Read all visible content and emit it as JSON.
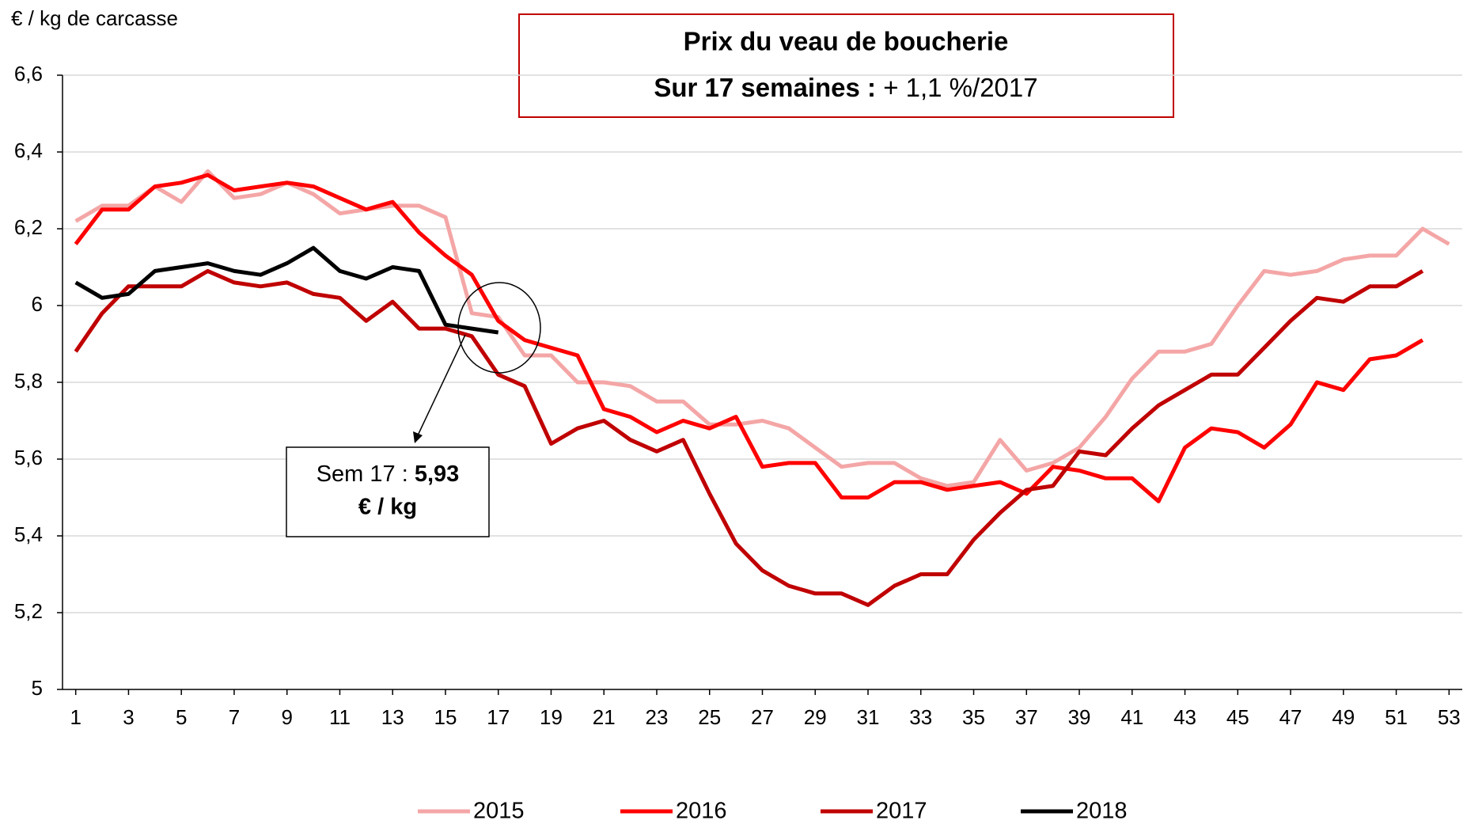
{
  "chart_data": {
    "type": "line",
    "title": "Prix du veau de boucherie",
    "subtitle": {
      "bold": "Sur  17 semaines :",
      "text": "+ 1,1 %/2017"
    },
    "y_label": "€ / kg de carcasse",
    "annotation": {
      "text": "Sem 17 :",
      "value": "5,93",
      "unit": "€ / kg"
    },
    "x": [
      1,
      2,
      3,
      4,
      5,
      6,
      7,
      8,
      9,
      10,
      11,
      12,
      13,
      14,
      15,
      16,
      17,
      18,
      19,
      20,
      21,
      22,
      23,
      24,
      25,
      26,
      27,
      28,
      29,
      30,
      31,
      32,
      33,
      34,
      35,
      36,
      37,
      38,
      39,
      40,
      41,
      42,
      43,
      44,
      45,
      46,
      47,
      48,
      49,
      50,
      51,
      52,
      53
    ],
    "xlim": [
      0.5,
      53.5
    ],
    "xticks": [
      1,
      3,
      5,
      7,
      9,
      11,
      13,
      15,
      17,
      19,
      21,
      23,
      25,
      27,
      29,
      31,
      33,
      35,
      37,
      39,
      41,
      43,
      45,
      47,
      49,
      51,
      53
    ],
    "ylim": [
      5,
      6.6
    ],
    "yticks": [
      5,
      {
        "value": 5.2,
        "label": "5,2"
      },
      {
        "value": 5.4,
        "label": "5,4"
      },
      {
        "value": 5.6,
        "label": "5,6"
      },
      {
        "value": 5.8,
        "label": "5,8"
      },
      6,
      {
        "value": 6.2,
        "label": "6,2"
      },
      {
        "value": 6.4,
        "label": "6,4"
      },
      {
        "value": 6.6,
        "label": "6,6"
      }
    ],
    "grid": true,
    "legend": "bottom",
    "series": [
      {
        "name": "2015",
        "color": "#f4a6a6",
        "values": [
          6.22,
          6.26,
          6.26,
          6.31,
          6.27,
          6.35,
          6.28,
          6.29,
          6.32,
          6.29,
          6.24,
          6.25,
          6.26,
          6.26,
          6.23,
          5.98,
          5.97,
          5.87,
          5.87,
          5.8,
          5.8,
          5.79,
          5.75,
          5.75,
          5.69,
          5.69,
          5.7,
          5.68,
          5.63,
          5.58,
          5.59,
          5.59,
          5.55,
          5.53,
          5.54,
          5.65,
          5.57,
          5.59,
          5.63,
          5.71,
          5.81,
          5.88,
          5.88,
          5.9,
          6.0,
          6.09,
          6.08,
          6.09,
          6.12,
          6.13,
          6.13,
          6.2,
          6.16
        ]
      },
      {
        "name": "2016",
        "color": "#ff0000",
        "values": [
          6.16,
          6.25,
          6.25,
          6.31,
          6.32,
          6.34,
          6.3,
          6.31,
          6.32,
          6.31,
          6.28,
          6.25,
          6.27,
          6.19,
          6.13,
          6.08,
          5.96,
          5.91,
          5.89,
          5.87,
          5.73,
          5.71,
          5.67,
          5.7,
          5.68,
          5.71,
          5.58,
          5.59,
          5.59,
          5.5,
          5.5,
          5.54,
          5.54,
          5.52,
          5.53,
          5.54,
          5.51,
          5.58,
          5.57,
          5.55,
          5.55,
          5.49,
          5.63,
          5.68,
          5.67,
          5.63,
          5.69,
          5.8,
          5.78,
          5.86,
          5.87,
          5.91,
          null
        ]
      },
      {
        "name": "2017",
        "color": "#c00000",
        "values": [
          5.88,
          5.98,
          6.05,
          6.05,
          6.05,
          6.09,
          6.06,
          6.05,
          6.06,
          6.03,
          6.02,
          5.96,
          6.01,
          5.94,
          5.94,
          5.92,
          5.82,
          5.79,
          5.64,
          5.68,
          5.7,
          5.65,
          5.62,
          5.65,
          5.51,
          5.38,
          5.31,
          5.27,
          5.25,
          5.25,
          5.22,
          5.27,
          5.3,
          5.3,
          5.39,
          5.46,
          5.52,
          5.53,
          5.62,
          5.61,
          5.68,
          5.74,
          5.78,
          5.82,
          5.82,
          5.89,
          5.96,
          6.02,
          6.01,
          6.05,
          6.05,
          6.09,
          null
        ]
      },
      {
        "name": "2018",
        "color": "#000000",
        "values": [
          6.06,
          6.02,
          6.03,
          6.09,
          6.1,
          6.11,
          6.09,
          6.08,
          6.11,
          6.15,
          6.09,
          6.07,
          6.1,
          6.09,
          5.95,
          5.94,
          5.93,
          null,
          null,
          null,
          null,
          null,
          null,
          null,
          null,
          null,
          null,
          null,
          null,
          null,
          null,
          null,
          null,
          null,
          null,
          null,
          null,
          null,
          null,
          null,
          null,
          null,
          null,
          null,
          null,
          null,
          null,
          null,
          null,
          null,
          null,
          null,
          null
        ]
      }
    ]
  }
}
